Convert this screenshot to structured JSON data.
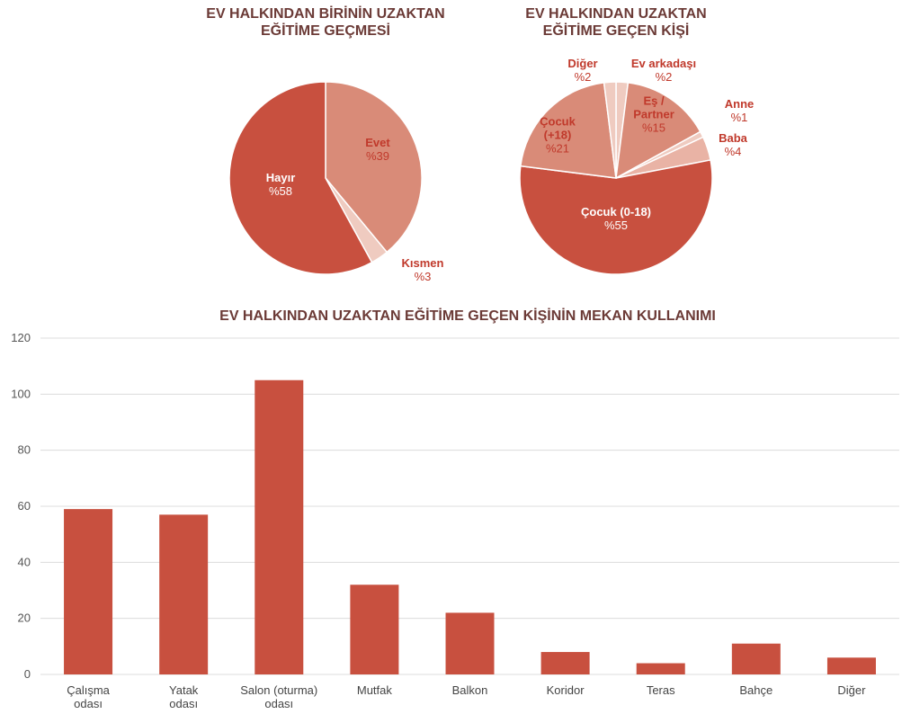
{
  "chart_data": [
    {
      "type": "pie",
      "title": "EV HALKINDAN BİRİNİN UZAKTAN EĞİTİME GEÇMESİ",
      "categories": [
        "Evet",
        "Kısmen",
        "Hayır"
      ],
      "values": [
        39,
        3,
        58
      ],
      "value_labels": [
        "%39",
        "%3",
        "%58"
      ],
      "colors": [
        "#d98b78",
        "#efcbc0",
        "#c8503f"
      ]
    },
    {
      "type": "pie",
      "title": "EV HALKINDAN UZAKTAN EĞİTİME GEÇEN KİŞİ",
      "categories": [
        "Ev arkadaşı",
        "Eş / Partner",
        "Anne",
        "Baba",
        "Çocuk (0-18)",
        "Çocuk (+18)",
        "Diğer"
      ],
      "values": [
        2,
        15,
        1,
        4,
        55,
        21,
        2
      ],
      "value_labels": [
        "%2",
        "%15",
        "%1",
        "%4",
        "%55",
        "%21",
        "%2"
      ],
      "colors": [
        "#efcbc0",
        "#d98b78",
        "#efcbc0",
        "#e9b3a5",
        "#c8503f",
        "#d98b78",
        "#efcbc0"
      ]
    },
    {
      "type": "bar",
      "title": "EV HALKINDAN UZAKTAN EĞİTİME GEÇEN KİŞİNİN MEKAN KULLANIMI",
      "categories": [
        "Çalışma odası",
        "Yatak odası",
        "Salon (oturma) odası",
        "Mutfak",
        "Balkon",
        "Koridor",
        "Teras",
        "Bahçe",
        "Diğer"
      ],
      "values": [
        59,
        57,
        105,
        32,
        22,
        8,
        4,
        11,
        6
      ],
      "color": "#c8503f",
      "ylim": [
        0,
        120
      ],
      "yticks": [
        0,
        20,
        40,
        60,
        80,
        100,
        120
      ],
      "grid": true
    }
  ]
}
